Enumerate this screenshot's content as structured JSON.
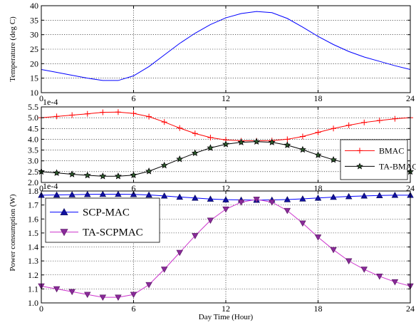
{
  "chart_data": [
    {
      "type": "line",
      "title": "",
      "xlabel": "",
      "ylabel": "Temperature (deg C)",
      "xlim": [
        0,
        24
      ],
      "ylim": [
        10,
        40
      ],
      "xticks": [
        "0",
        "6",
        "12",
        "18",
        "24"
      ],
      "yticks": [
        "10",
        "15",
        "20",
        "25",
        "30",
        "35",
        "40"
      ],
      "grid": true,
      "legend": "none",
      "series": [
        {
          "name": "",
          "color": "#0000ff",
          "marker": "none",
          "x": [
            0,
            1,
            2,
            3,
            4,
            5,
            6,
            7,
            8,
            9,
            10,
            11,
            12,
            13,
            14,
            15,
            16,
            17,
            18,
            19,
            20,
            21,
            22,
            23,
            24
          ],
          "values": [
            18,
            17,
            16,
            15,
            14.2,
            14.2,
            15.8,
            19,
            23,
            27,
            30.5,
            33.5,
            35.8,
            37.3,
            38,
            37.6,
            35.6,
            32.6,
            29.4,
            26.6,
            24.2,
            22.3,
            20.8,
            19.3,
            18
          ]
        }
      ]
    },
    {
      "type": "line",
      "title": "",
      "xlabel": "",
      "ylabel": "",
      "offset_label": "1e-4",
      "xlim": [
        0,
        24
      ],
      "ylim": [
        2.0,
        5.5
      ],
      "xticks": [
        "0",
        "6",
        "12",
        "18",
        "24"
      ],
      "yticks": [
        "2.0",
        "2.5",
        "3.0",
        "3.5",
        "4.0",
        "4.5",
        "5.0",
        "5.5"
      ],
      "grid": true,
      "legend": "lower-right",
      "series": [
        {
          "name": "BMAC",
          "color": "#ff0000",
          "marker": "plus",
          "x": [
            0,
            1,
            2,
            3,
            4,
            5,
            6,
            7,
            8,
            9,
            10,
            11,
            12,
            13,
            14,
            15,
            16,
            17,
            18,
            19,
            20,
            21,
            22,
            23,
            24
          ],
          "values": [
            5.0,
            5.06,
            5.12,
            5.18,
            5.25,
            5.26,
            5.2,
            5.05,
            4.8,
            4.52,
            4.27,
            4.08,
            3.97,
            3.93,
            3.93,
            3.94,
            4.0,
            4.13,
            4.32,
            4.5,
            4.65,
            4.78,
            4.87,
            4.95,
            5.0
          ]
        },
        {
          "name": "TA-BMAC",
          "color": "#000000",
          "marker": "star",
          "x": [
            0,
            1,
            2,
            3,
            4,
            5,
            6,
            7,
            8,
            9,
            10,
            11,
            12,
            13,
            14,
            15,
            16,
            17,
            18,
            19,
            20,
            21,
            22,
            23,
            24
          ],
          "values": [
            2.5,
            2.44,
            2.38,
            2.33,
            2.29,
            2.29,
            2.34,
            2.52,
            2.79,
            3.08,
            3.36,
            3.6,
            3.77,
            3.86,
            3.89,
            3.86,
            3.73,
            3.52,
            3.27,
            3.05,
            2.88,
            2.76,
            2.66,
            2.58,
            2.5
          ]
        }
      ]
    },
    {
      "type": "line",
      "title": "",
      "xlabel": "Day Time (Hour)",
      "ylabel": "Power consumption (W)",
      "offset_label": "1e-4",
      "xlim": [
        0,
        24
      ],
      "ylim": [
        1.0,
        1.8
      ],
      "xticks": [
        "0",
        "6",
        "12",
        "18",
        "24"
      ],
      "yticks": [
        "1.0",
        "1.1",
        "1.2",
        "1.3",
        "1.4",
        "1.5",
        "1.6",
        "1.7",
        "1.8"
      ],
      "grid": true,
      "legend": "upper-left",
      "series": [
        {
          "name": "SCP-MAC",
          "color": "#0000ff",
          "marker": "triangle-up",
          "x": [
            0,
            1,
            2,
            3,
            4,
            5,
            6,
            7,
            8,
            9,
            10,
            11,
            12,
            13,
            14,
            15,
            16,
            17,
            18,
            19,
            20,
            21,
            22,
            23,
            24
          ],
          "values": [
            1.77,
            1.772,
            1.774,
            1.776,
            1.777,
            1.777,
            1.776,
            1.772,
            1.765,
            1.757,
            1.75,
            1.743,
            1.738,
            1.736,
            1.735,
            1.736,
            1.739,
            1.744,
            1.75,
            1.756,
            1.761,
            1.765,
            1.768,
            1.77,
            1.77
          ]
        },
        {
          "name": "TA-SCPMAC",
          "color": "#cc33cc",
          "marker": "triangle-down",
          "x": [
            0,
            1,
            2,
            3,
            4,
            5,
            6,
            7,
            8,
            9,
            10,
            11,
            12,
            13,
            14,
            15,
            16,
            17,
            18,
            19,
            20,
            21,
            22,
            23,
            24
          ],
          "values": [
            1.12,
            1.1,
            1.08,
            1.06,
            1.04,
            1.04,
            1.06,
            1.13,
            1.24,
            1.36,
            1.48,
            1.59,
            1.67,
            1.72,
            1.74,
            1.72,
            1.66,
            1.57,
            1.47,
            1.38,
            1.3,
            1.24,
            1.19,
            1.15,
            1.12
          ]
        }
      ]
    }
  ]
}
